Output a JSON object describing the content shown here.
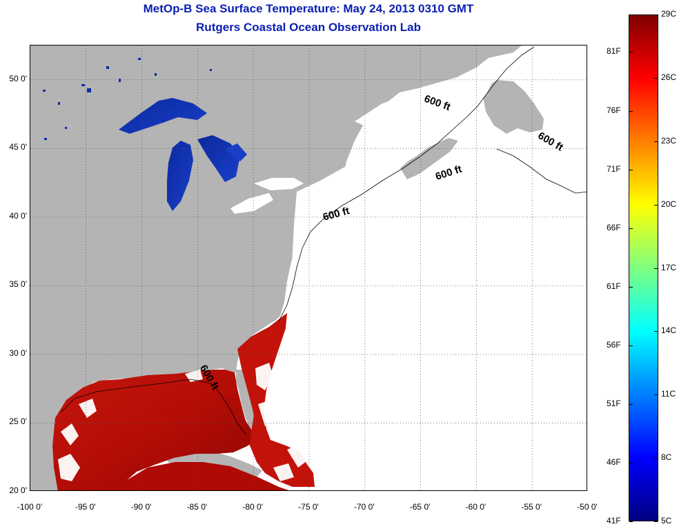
{
  "title_line1": "MetOp-B Sea Surface Temperature:  May 24, 2013 0310 GMT",
  "title_line2": "Rutgers Coastal Ocean Observation Lab",
  "map": {
    "lon_range": [
      -100,
      -50
    ],
    "lat_range": [
      20,
      52.5
    ],
    "lat_ticks": [
      {
        "value": 20,
        "label": "20 0'"
      },
      {
        "value": 25,
        "label": "25 0'"
      },
      {
        "value": 30,
        "label": "30 0'"
      },
      {
        "value": 35,
        "label": "35 0'"
      },
      {
        "value": 40,
        "label": "40 0'"
      },
      {
        "value": 45,
        "label": "45 0'"
      },
      {
        "value": 50,
        "label": "50 0'"
      }
    ],
    "lon_ticks": [
      {
        "value": -100,
        "label": "-100 0'"
      },
      {
        "value": -95,
        "label": "-95 0'"
      },
      {
        "value": -90,
        "label": "-90 0'"
      },
      {
        "value": -85,
        "label": "-85 0'"
      },
      {
        "value": -80,
        "label": "-80 0'"
      },
      {
        "value": -75,
        "label": "-75 0'"
      },
      {
        "value": -70,
        "label": "-70 0'"
      },
      {
        "value": -65,
        "label": "-65 0'"
      },
      {
        "value": -60,
        "label": "-60 0'"
      },
      {
        "value": -55,
        "label": "-55 0'"
      },
      {
        "value": -50,
        "label": "-50 0'"
      }
    ],
    "contour_labels": [
      {
        "text": "600 ft",
        "lon": -63.6,
        "lat": 48.1,
        "rotation": 20
      },
      {
        "text": "600 ft",
        "lon": -53.5,
        "lat": 45.3,
        "rotation": 30
      },
      {
        "text": "600 ft",
        "lon": -62.4,
        "lat": 43.0,
        "rotation": -18
      },
      {
        "text": "600 ft",
        "lon": -72.5,
        "lat": 40.0,
        "rotation": -15
      },
      {
        "text": "600 ft",
        "lon": -84.2,
        "lat": 28.2,
        "rotation": 60
      }
    ],
    "colors": {
      "land": "#b4b4b4",
      "no_data": "#ffffff",
      "grid": "#555555",
      "contour": "#000000"
    }
  },
  "colorbar": {
    "min_c": 5,
    "max_c": 29,
    "celsius_labels": [
      {
        "value": 29,
        "label": "29C"
      },
      {
        "value": 26,
        "label": "26C"
      },
      {
        "value": 23,
        "label": "23C"
      },
      {
        "value": 20,
        "label": "20C"
      },
      {
        "value": 17,
        "label": "17C"
      },
      {
        "value": 14,
        "label": "14C"
      },
      {
        "value": 11,
        "label": "11C"
      },
      {
        "value": 8,
        "label": "8C"
      },
      {
        "value": 5,
        "label": "5C"
      }
    ],
    "fahrenheit_labels": [
      {
        "value": 81,
        "label": "81F"
      },
      {
        "value": 76,
        "label": "76F"
      },
      {
        "value": 71,
        "label": "71F"
      },
      {
        "value": 66,
        "label": "66F"
      },
      {
        "value": 61,
        "label": "61F"
      },
      {
        "value": 56,
        "label": "56F"
      },
      {
        "value": 51,
        "label": "51F"
      },
      {
        "value": 46,
        "label": "46F"
      },
      {
        "value": 41,
        "label": "41F"
      }
    ]
  }
}
